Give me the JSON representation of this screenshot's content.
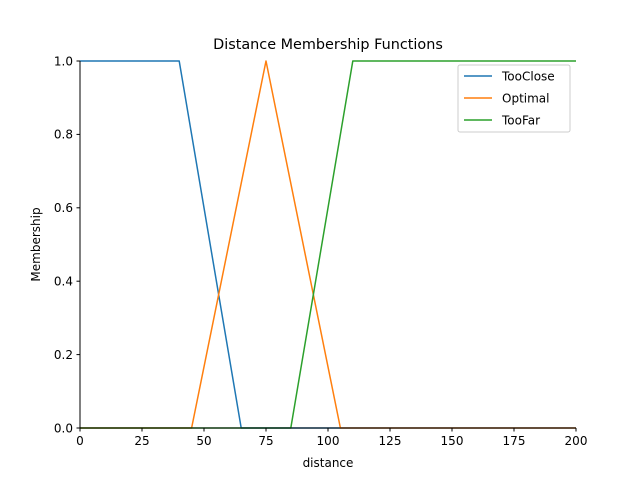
{
  "chart_data": {
    "type": "line",
    "title": "Distance Membership Functions",
    "xlabel": "distance",
    "ylabel": "Membership",
    "xlim": [
      0,
      200
    ],
    "ylim": [
      0.0,
      1.0
    ],
    "x_ticks": [
      0,
      25,
      50,
      75,
      100,
      125,
      150,
      175,
      200
    ],
    "y_ticks": [
      0.0,
      0.2,
      0.4,
      0.6,
      0.8,
      1.0
    ],
    "x_tick_labels": [
      "0",
      "25",
      "50",
      "75",
      "100",
      "125",
      "150",
      "175",
      "200"
    ],
    "y_tick_labels": [
      "0.0",
      "0.2",
      "0.4",
      "0.6",
      "0.8",
      "1.0"
    ],
    "grid": false,
    "legend_position": "top-right",
    "series": [
      {
        "name": "TooClose",
        "color": "#1f77b4",
        "x": [
          0,
          40,
          65,
          200
        ],
        "y": [
          1,
          1,
          0,
          0
        ]
      },
      {
        "name": "Optimal",
        "color": "#ff7f0e",
        "x": [
          0,
          45,
          75,
          105,
          200
        ],
        "y": [
          0,
          0,
          1,
          0,
          0
        ]
      },
      {
        "name": "TooFar",
        "color": "#2ca02c",
        "x": [
          0,
          85,
          110,
          200
        ],
        "y": [
          0,
          0,
          1,
          1
        ]
      }
    ]
  }
}
